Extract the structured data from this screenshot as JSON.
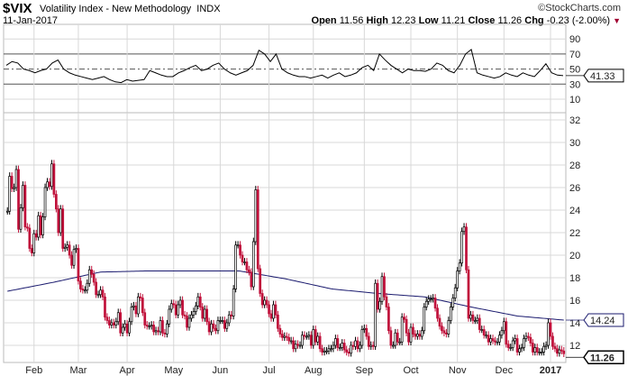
{
  "header": {
    "symbol": "$VIX",
    "name": "Volatility Index - New Methodology",
    "exchange": "INDX",
    "date": "11-Jan-2017",
    "copyright": "©StockCharts.com",
    "open_label": "Open",
    "open": "11.56",
    "high_label": "High",
    "high": "12.23",
    "low_label": "Low",
    "low": "11.21",
    "close_label": "Close",
    "close": "11.26",
    "chg_label": "Chg",
    "chg": "-0.23 (-2.00%)",
    "chg_direction": "down"
  },
  "colors": {
    "up": "#000000",
    "down": "#c0103a",
    "ma": "#1a1a6e",
    "rsi": "#000000",
    "grid": "#d8d8d8"
  },
  "chart_data": [
    {
      "type": "line",
      "panel": "rsi",
      "ylim": [
        10,
        100
      ],
      "yticks": [
        90,
        70,
        50,
        30,
        10
      ],
      "reference_lines": [
        70,
        50,
        30
      ],
      "last_value": "41.33",
      "values": [
        55,
        60,
        58,
        50,
        48,
        45,
        48,
        50,
        58,
        62,
        50,
        45,
        42,
        40,
        38,
        36,
        38,
        40,
        36,
        33,
        32,
        36,
        34,
        35,
        36,
        48,
        45,
        42,
        40,
        40,
        45,
        48,
        52,
        55,
        48,
        50,
        55,
        58,
        50,
        45,
        42,
        45,
        48,
        55,
        75,
        70,
        60,
        70,
        50,
        45,
        42,
        40,
        40,
        38,
        40,
        42,
        38,
        42,
        45,
        40,
        42,
        45,
        52,
        55,
        48,
        70,
        62,
        55,
        50,
        45,
        50,
        48,
        48,
        47,
        50,
        58,
        55,
        48,
        45,
        55,
        70,
        76,
        45,
        42,
        40,
        38,
        40,
        45,
        42,
        40,
        45,
        42,
        40,
        48,
        57,
        45,
        42,
        41.33
      ]
    },
    {
      "type": "candlestick",
      "panel": "price",
      "ylim": [
        10.5,
        32.5
      ],
      "yticks": [
        32,
        30,
        28,
        26,
        24,
        22,
        20,
        18,
        16,
        14,
        12
      ],
      "grid": true,
      "xticks": [
        {
          "label": "Feb",
          "index": 12
        },
        {
          "label": "Mar",
          "index": 32
        },
        {
          "label": "Apr",
          "index": 54
        },
        {
          "label": "May",
          "index": 75
        },
        {
          "label": "Jun",
          "index": 96
        },
        {
          "label": "Jul",
          "index": 118
        },
        {
          "label": "Aug",
          "index": 138
        },
        {
          "label": "Sep",
          "index": 161
        },
        {
          "label": "Oct",
          "index": 182
        },
        {
          "label": "Nov",
          "index": 203
        },
        {
          "label": "Dec",
          "index": 224
        },
        {
          "label": "2017",
          "index": 245,
          "bold": true
        }
      ],
      "last_close": "11.26",
      "close": [
        23.9,
        27.0,
        25.9,
        26.0,
        27.6,
        22.3,
        24.2,
        26.2,
        22.5,
        22.4,
        20.6,
        20.2,
        21.9,
        21.6,
        23.5,
        21.8,
        23.4,
        26.0,
        26.5,
        26.1,
        28.1,
        25.4,
        24.1,
        22.0,
        24.1,
        20.6,
        20.7,
        20.9,
        20.0,
        19.1,
        20.5,
        20.6,
        17.7,
        17.0,
        16.9,
        16.9,
        17.5,
        18.7,
        18.3,
        17.6,
        16.5,
        16.5,
        16.9,
        16.3,
        14.5,
        14.2,
        13.8,
        14.0,
        13.8,
        14.1,
        14.9,
        13.1,
        13.6,
        13.9,
        13.1,
        14.1,
        15.4,
        15.5,
        14.8,
        16.3,
        16.2,
        14.9,
        13.8,
        13.7,
        13.7,
        13.8,
        13.2,
        13.3,
        13.2,
        14.2,
        13.1,
        13.0,
        13.9,
        15.2,
        15.7,
        15.6,
        14.7,
        15.6,
        16.0,
        14.7,
        14.6,
        13.6,
        14.4,
        14.7,
        15.0,
        15.5,
        16.3,
        15.4,
        14.4,
        15.2,
        14.1,
        13.2,
        13.9,
        13.5,
        13.3,
        14.2,
        14.2,
        14.2,
        13.5,
        14.0,
        14.7,
        14.6,
        17.0,
        20.9,
        20.9,
        20.0,
        19.4,
        19.4,
        18.7,
        18.5,
        17.2,
        21.2,
        25.8,
        18.8,
        16.6,
        15.6,
        16.0,
        15.6,
        14.8,
        14.4,
        15.6,
        14.7,
        13.5,
        13.0,
        12.7,
        12.8,
        12.7,
        12.4,
        12.4,
        11.7,
        12.1,
        12.0,
        12.0,
        12.9,
        12.8,
        12.8,
        12.9,
        12.0,
        13.4,
        12.3,
        12.8,
        11.7,
        11.4,
        11.5,
        11.5,
        11.7,
        11.7,
        12.0,
        12.6,
        11.8,
        11.8,
        12.2,
        11.6,
        11.4,
        11.3,
        12.0,
        11.9,
        12.4,
        11.7,
        12.0,
        13.4,
        13.5,
        12.8,
        11.9,
        12.0,
        11.9,
        17.5,
        15.2,
        15.9,
        18.1,
        16.3,
        15.4,
        13.3,
        12.0,
        12.0,
        13.1,
        12.3,
        12.3,
        14.5,
        14.3,
        13.1,
        12.3,
        13.6,
        13.0,
        12.8,
        13.0,
        12.8,
        13.3,
        15.4,
        15.9,
        16.1,
        16.1,
        16.2,
        15.3,
        14.4,
        13.7,
        13.3,
        13.1,
        13.0,
        14.2,
        15.4,
        16.2,
        17.1,
        18.6,
        19.3,
        22.1,
        22.5,
        18.7,
        14.4,
        14.7,
        14.2,
        14.2,
        14.4,
        13.4,
        13.4,
        12.9,
        12.9,
        12.3,
        12.6,
        12.4,
        12.3,
        12.3,
        12.9,
        13.3,
        14.1,
        12.1,
        11.8,
        11.8,
        12.4,
        12.6,
        11.4,
        11.7,
        11.8,
        12.6,
        12.8,
        12.7,
        12.2,
        11.4,
        11.8,
        11.4,
        11.4,
        11.4,
        11.9,
        12.0,
        14.0,
        12.8,
        11.9,
        11.7,
        11.3,
        11.6,
        11.5,
        11.26
      ],
      "overlay": {
        "type": "moving-average",
        "last_value": "14.24",
        "values": [
          16.8,
          17.6,
          18.5,
          18.6,
          18.6,
          18.6,
          17.9,
          17.0,
          16.6,
          16.3,
          15.4,
          14.6,
          14.24
        ]
      }
    }
  ]
}
